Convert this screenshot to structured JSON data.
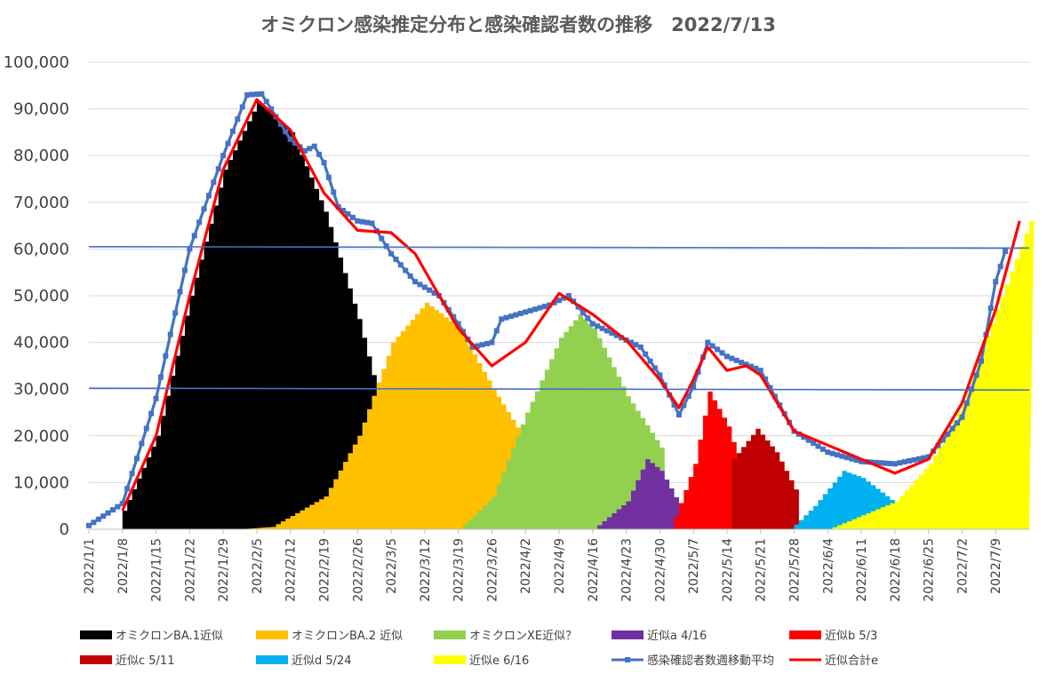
{
  "chart_data": {
    "type": "area",
    "title": "オミクロン感染推定分布と感染確認者数の推移　2022/7/13",
    "xlabel": "",
    "ylabel": "",
    "ylim": [
      0,
      100000
    ],
    "yticks": [
      "0",
      "10,000",
      "20,000",
      "30,000",
      "40,000",
      "50,000",
      "60,000",
      "70,000",
      "80,000",
      "90,000",
      "100,000"
    ],
    "xticks": [
      "2022/1/1",
      "2022/1/8",
      "2022/1/15",
      "2022/1/22",
      "2022/1/29",
      "2022/2/5",
      "2022/2/12",
      "2022/2/19",
      "2022/2/26",
      "2022/3/5",
      "2022/3/12",
      "2022/3/19",
      "2022/3/26",
      "2022/4/2",
      "2022/4/9",
      "2022/4/16",
      "2022/4/23",
      "2022/4/30",
      "2022/5/7",
      "2022/5/14",
      "2022/5/21",
      "2022/5/28",
      "2022/6/4",
      "2022/6/11",
      "2022/6/18",
      "2022/6/25",
      "2022/7/2",
      "2022/7/9"
    ],
    "grid": true,
    "legend_position": "bottom",
    "reference_lines": [
      {
        "y_start": 60500,
        "y_end": 60200
      },
      {
        "y_start": 30200,
        "y_end": 29800
      }
    ],
    "series": [
      {
        "name": "オミクロンBA.1近似",
        "kind": "area",
        "color": "#000000",
        "points": [
          [
            "2022/1/8",
            4000
          ],
          [
            "2022/1/15",
            20000
          ],
          [
            "2022/1/22",
            50000
          ],
          [
            "2022/1/29",
            77000
          ],
          [
            "2022/2/5",
            91500
          ],
          [
            "2022/2/12",
            85000
          ],
          [
            "2022/2/19",
            68000
          ],
          [
            "2022/2/26",
            45000
          ],
          [
            "2022/3/1",
            33000
          ],
          [
            "2022/3/2",
            0
          ]
        ]
      },
      {
        "name": "オミクロンBA.2 近似",
        "kind": "area",
        "color": "#FFC000",
        "points": [
          [
            "2022/2/1",
            0
          ],
          [
            "2022/2/8",
            500
          ],
          [
            "2022/2/19",
            7000
          ],
          [
            "2022/2/26",
            20000
          ],
          [
            "2022/3/5",
            40000
          ],
          [
            "2022/3/12",
            48500
          ],
          [
            "2022/3/19",
            43000
          ],
          [
            "2022/3/26",
            30000
          ],
          [
            "2022/4/2",
            18500
          ],
          [
            "2022/4/3",
            0
          ]
        ]
      },
      {
        "name": "オミクロンXE近似？",
        "kind": "area",
        "color": "#92D050",
        "points": [
          [
            "2022/3/19",
            0
          ],
          [
            "2022/3/26",
            7000
          ],
          [
            "2022/4/2",
            25000
          ],
          [
            "2022/4/9",
            41000
          ],
          [
            "2022/4/13",
            46000
          ],
          [
            "2022/4/16",
            43000
          ],
          [
            "2022/4/23",
            28500
          ],
          [
            "2022/4/30",
            17500
          ],
          [
            "2022/5/1",
            0
          ]
        ]
      },
      {
        "name": "近似a 4/16",
        "kind": "area",
        "color": "#7030A0",
        "points": [
          [
            "2022/4/16",
            0
          ],
          [
            "2022/4/23",
            6000
          ],
          [
            "2022/4/27",
            15000
          ],
          [
            "2022/4/30",
            12500
          ],
          [
            "2022/5/4",
            5000
          ],
          [
            "2022/5/5",
            0
          ]
        ]
      },
      {
        "name": "近似b 5/3",
        "kind": "area",
        "color": "#FF0000",
        "points": [
          [
            "2022/5/2",
            0
          ],
          [
            "2022/5/7",
            14000
          ],
          [
            "2022/5/10",
            29500
          ],
          [
            "2022/5/14",
            22000
          ],
          [
            "2022/5/17",
            12000
          ],
          [
            "2022/5/18",
            0
          ]
        ]
      },
      {
        "name": "近似c 5/11",
        "kind": "area",
        "color": "#C00000",
        "points": [
          [
            "2022/5/14",
            0
          ],
          [
            "2022/5/15",
            15000
          ],
          [
            "2022/5/20",
            21500
          ],
          [
            "2022/5/24",
            16500
          ],
          [
            "2022/5/28",
            8500
          ],
          [
            "2022/5/29",
            0
          ]
        ]
      },
      {
        "name": "近似d 5/24",
        "kind": "area",
        "color": "#00B0F0",
        "points": [
          [
            "2022/5/27",
            0
          ],
          [
            "2022/6/1",
            5000
          ],
          [
            "2022/6/7",
            12500
          ],
          [
            "2022/6/11",
            11000
          ],
          [
            "2022/6/18",
            5500
          ],
          [
            "2022/6/19",
            0
          ]
        ]
      },
      {
        "name": "近似e 6/16",
        "kind": "area",
        "color": "#FFFF00",
        "points": [
          [
            "2022/6/4",
            0
          ],
          [
            "2022/6/11",
            3000
          ],
          [
            "2022/6/18",
            6000
          ],
          [
            "2022/6/25",
            14000
          ],
          [
            "2022/7/2",
            27000
          ],
          [
            "2022/7/9",
            47000
          ],
          [
            "2022/7/16",
            66000
          ]
        ]
      },
      {
        "name": "感染確認者数週移動平均",
        "kind": "line-marker",
        "color": "#4472C4",
        "points": [
          [
            "2022/1/1",
            800
          ],
          [
            "2022/1/8",
            5500
          ],
          [
            "2022/1/15",
            28000
          ],
          [
            "2022/1/22",
            60000
          ],
          [
            "2022/1/29",
            80000
          ],
          [
            "2022/2/3",
            93000
          ],
          [
            "2022/2/6",
            93200
          ],
          [
            "2022/2/12",
            83500
          ],
          [
            "2022/2/15",
            81000
          ],
          [
            "2022/2/17",
            82000
          ],
          [
            "2022/2/19",
            78500
          ],
          [
            "2022/2/22",
            69000
          ],
          [
            "2022/2/26",
            66000
          ],
          [
            "2022/3/1",
            65500
          ],
          [
            "2022/3/5",
            59000
          ],
          [
            "2022/3/10",
            53000
          ],
          [
            "2022/3/15",
            50000
          ],
          [
            "2022/3/19",
            44000
          ],
          [
            "2022/3/22",
            39000
          ],
          [
            "2022/3/26",
            40000
          ],
          [
            "2022/3/28",
            45000
          ],
          [
            "2022/4/2",
            46500
          ],
          [
            "2022/4/7",
            48000
          ],
          [
            "2022/4/11",
            50000
          ],
          [
            "2022/4/16",
            44000
          ],
          [
            "2022/4/23",
            40500
          ],
          [
            "2022/4/26",
            39000
          ],
          [
            "2022/4/30",
            33000
          ],
          [
            "2022/5/4",
            24500
          ],
          [
            "2022/5/7",
            30500
          ],
          [
            "2022/5/10",
            40000
          ],
          [
            "2022/5/14",
            37000
          ],
          [
            "2022/5/21",
            34000
          ],
          [
            "2022/5/28",
            21000
          ],
          [
            "2022/6/4",
            16500
          ],
          [
            "2022/6/11",
            14500
          ],
          [
            "2022/6/18",
            14000
          ],
          [
            "2022/6/25",
            15500
          ],
          [
            "2022/7/2",
            24000
          ],
          [
            "2022/7/6",
            36000
          ],
          [
            "2022/7/9",
            53000
          ],
          [
            "2022/7/11",
            59500
          ]
        ]
      },
      {
        "name": "近似合計e",
        "kind": "line",
        "color": "#FF0000",
        "points": [
          [
            "2022/1/8",
            4000
          ],
          [
            "2022/1/15",
            20000
          ],
          [
            "2022/1/22",
            50000
          ],
          [
            "2022/1/29",
            77000
          ],
          [
            "2022/2/5",
            92000
          ],
          [
            "2022/2/12",
            85500
          ],
          [
            "2022/2/19",
            72000
          ],
          [
            "2022/2/26",
            64000
          ],
          [
            "2022/3/5",
            63500
          ],
          [
            "2022/3/10",
            59000
          ],
          [
            "2022/3/15",
            50000
          ],
          [
            "2022/3/19",
            43000
          ],
          [
            "2022/3/26",
            35000
          ],
          [
            "2022/4/2",
            40000
          ],
          [
            "2022/4/9",
            50500
          ],
          [
            "2022/4/16",
            46000
          ],
          [
            "2022/4/23",
            40500
          ],
          [
            "2022/4/30",
            32000
          ],
          [
            "2022/5/4",
            26000
          ],
          [
            "2022/5/7",
            32000
          ],
          [
            "2022/5/10",
            39000
          ],
          [
            "2022/5/14",
            34000
          ],
          [
            "2022/5/18",
            35000
          ],
          [
            "2022/5/21",
            33000
          ],
          [
            "2022/5/28",
            21000
          ],
          [
            "2022/6/4",
            18000
          ],
          [
            "2022/6/11",
            15000
          ],
          [
            "2022/6/18",
            12000
          ],
          [
            "2022/6/25",
            15000
          ],
          [
            "2022/7/2",
            27000
          ],
          [
            "2022/7/9",
            47000
          ],
          [
            "2022/7/14",
            66000
          ]
        ]
      }
    ]
  },
  "legend": {
    "items": [
      {
        "label": "オミクロンBA.1近似",
        "color": "#000000",
        "kind": "swatch"
      },
      {
        "label": "オミクロンBA.2 近似",
        "color": "#FFC000",
        "kind": "swatch"
      },
      {
        "label": "オミクロンXE近似？",
        "color": "#92D050",
        "kind": "swatch"
      },
      {
        "label": "近似a 4/16",
        "color": "#7030A0",
        "kind": "swatch"
      },
      {
        "label": "近似b 5/3",
        "color": "#FF0000",
        "kind": "swatch"
      },
      {
        "label": "近似c 5/11",
        "color": "#C00000",
        "kind": "swatch"
      },
      {
        "label": "近似d 5/24",
        "color": "#00B0F0",
        "kind": "swatch"
      },
      {
        "label": "近似e 6/16",
        "color": "#FFFF00",
        "kind": "swatch"
      },
      {
        "label": "感染確認者数週移動平均",
        "color": "#4472C4",
        "kind": "line-marker"
      },
      {
        "label": "近似合計e",
        "color": "#FF0000",
        "kind": "line"
      }
    ]
  }
}
